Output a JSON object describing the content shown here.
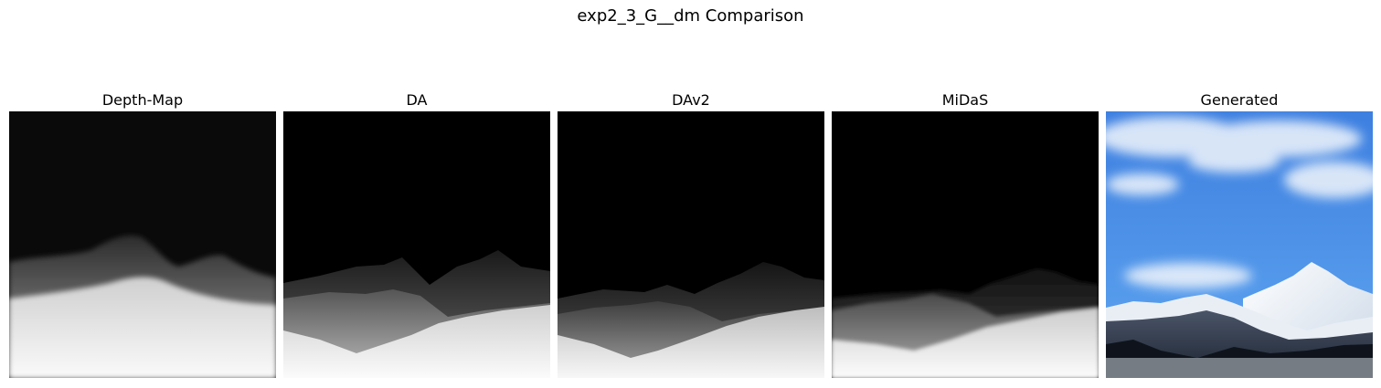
{
  "figure": {
    "title": "exp2_3_G__dm Comparison"
  },
  "panels": [
    {
      "title": "Depth-Map",
      "kind": "depth-map-image"
    },
    {
      "title": "DA",
      "kind": "depth-map-image"
    },
    {
      "title": "DAv2",
      "kind": "depth-map-image"
    },
    {
      "title": "MiDaS",
      "kind": "depth-map-image"
    },
    {
      "title": "Generated",
      "kind": "mountain-photo-image"
    }
  ]
}
